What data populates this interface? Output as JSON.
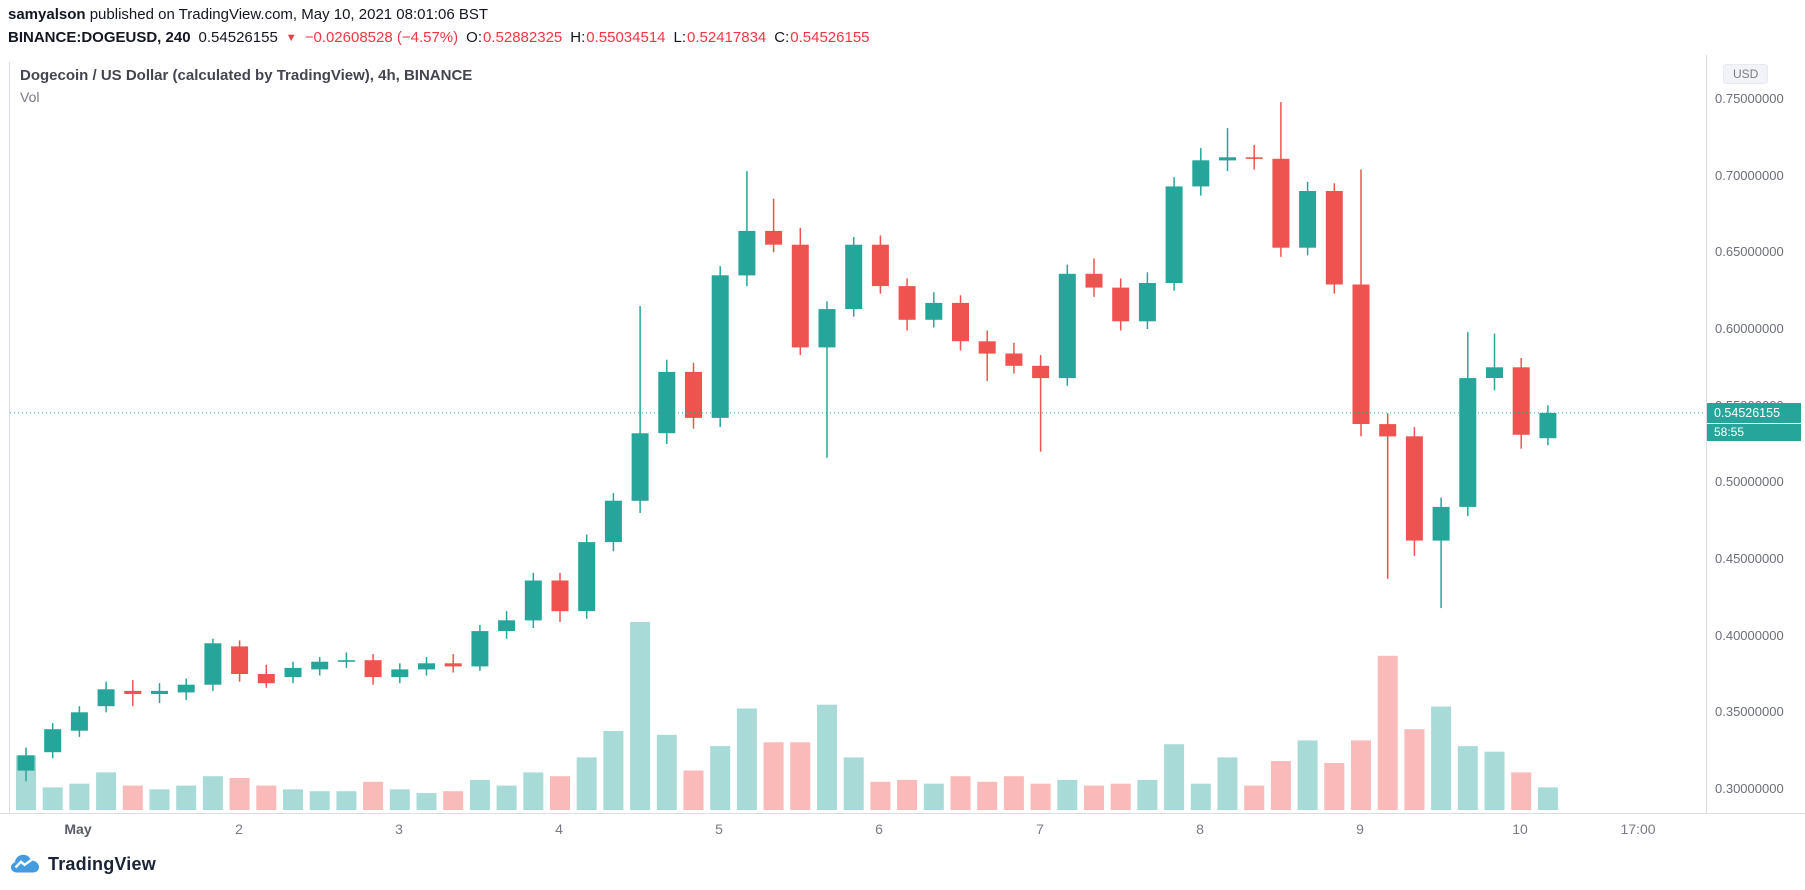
{
  "header": {
    "publisher": "samyalson",
    "published_text": " published on TradingView.com, May 10, 2021 08:01:06 BST"
  },
  "symbol_bar": {
    "symbol": "BINANCE:DOGEUSD, 240",
    "last_price": "0.54526155",
    "direction_icon": "▼",
    "change": "−0.02608528 (−4.57%)",
    "ohlc": [
      {
        "label": "O:",
        "value": "0.52882325"
      },
      {
        "label": "H:",
        "value": "0.55034514"
      },
      {
        "label": "L:",
        "value": "0.52417834"
      },
      {
        "label": "C:",
        "value": "0.54526155"
      }
    ]
  },
  "chart": {
    "title": "Dogecoin / US Dollar (calculated by TradingView), 4h, BINANCE",
    "vol_label": "Vol",
    "currency_badge": "USD",
    "price_label": "0.54526155",
    "countdown": "58:55"
  },
  "footer": {
    "brand": "TradingView"
  },
  "colors": {
    "up": "#26a69a",
    "down": "#ef5350",
    "up_vol": "rgba(38,166,154,0.40)",
    "down_vol": "rgba(239,83,80,0.40)",
    "red_text": "#f23645",
    "axis_text": "#6b6f7b",
    "frame": "#dadde3",
    "dark_text": "#131722",
    "brand_blue": "#459be0"
  },
  "chart_data": {
    "type": "candlestick",
    "title": "Dogecoin / US Dollar (calculated by TradingView), 4h, BINANCE",
    "interval": "4h (240)",
    "legend": [
      "price candles",
      "Vol overlay"
    ],
    "grid": "off",
    "y_axis_side": "right",
    "y_range_visible": [
      0.284,
      0.774
    ],
    "current_price": 0.54526155,
    "countdown": "58:55",
    "y_ticks": [
      {
        "value": 0.75,
        "label": "0.75000000"
      },
      {
        "value": 0.7,
        "label": "0.70000000"
      },
      {
        "value": 0.65,
        "label": "0.65000000"
      },
      {
        "value": 0.6,
        "label": "0.60000000"
      },
      {
        "value": 0.55,
        "label": "0.55000000"
      },
      {
        "value": 0.5,
        "label": "0.50000000"
      },
      {
        "value": 0.45,
        "label": "0.45000000"
      },
      {
        "value": 0.4,
        "label": "0.40000000"
      },
      {
        "value": 0.35,
        "label": "0.35000000"
      },
      {
        "value": 0.3,
        "label": "0.30000000"
      }
    ],
    "x_axis_labels": [
      {
        "label": "May",
        "i": 2,
        "bold": true
      },
      {
        "label": "2",
        "i": 8
      },
      {
        "label": "3",
        "i": 14
      },
      {
        "label": "4",
        "i": 20
      },
      {
        "label": "5",
        "i": 26
      },
      {
        "label": "6",
        "i": 32
      },
      {
        "label": "7",
        "i": 38
      },
      {
        "label": "8",
        "i": 44
      },
      {
        "label": "9",
        "i": 50
      },
      {
        "label": "10",
        "i": 56
      },
      {
        "label": "17:00",
        "i": 60.4
      }
    ],
    "candles_note": "4h bars, ~Apr 30 16:00 to May 10 04:00; values estimated from axis; order [open, high, low, close, volume_relative_0_100]; volume scale unlabeled in chart",
    "candles_ohlcv": [
      [
        0.312,
        0.327,
        0.305,
        0.322,
        29
      ],
      [
        0.324,
        0.343,
        0.32,
        0.339,
        12
      ],
      [
        0.338,
        0.354,
        0.334,
        0.35,
        14
      ],
      [
        0.354,
        0.37,
        0.35,
        0.365,
        20
      ],
      [
        0.364,
        0.371,
        0.354,
        0.362,
        13
      ],
      [
        0.362,
        0.369,
        0.356,
        0.364,
        11
      ],
      [
        0.363,
        0.372,
        0.358,
        0.368,
        13
      ],
      [
        0.368,
        0.398,
        0.364,
        0.395,
        18
      ],
      [
        0.393,
        0.397,
        0.37,
        0.375,
        17
      ],
      [
        0.375,
        0.381,
        0.366,
        0.369,
        13
      ],
      [
        0.373,
        0.383,
        0.369,
        0.379,
        11
      ],
      [
        0.378,
        0.386,
        0.374,
        0.383,
        10
      ],
      [
        0.383,
        0.389,
        0.379,
        0.384,
        10
      ],
      [
        0.384,
        0.388,
        0.368,
        0.373,
        15
      ],
      [
        0.373,
        0.382,
        0.369,
        0.378,
        11
      ],
      [
        0.378,
        0.386,
        0.374,
        0.382,
        9
      ],
      [
        0.382,
        0.388,
        0.376,
        0.38,
        10
      ],
      [
        0.38,
        0.407,
        0.377,
        0.403,
        16
      ],
      [
        0.403,
        0.416,
        0.398,
        0.41,
        13
      ],
      [
        0.41,
        0.441,
        0.405,
        0.436,
        20
      ],
      [
        0.436,
        0.441,
        0.409,
        0.416,
        18
      ],
      [
        0.416,
        0.466,
        0.411,
        0.461,
        28
      ],
      [
        0.461,
        0.493,
        0.455,
        0.488,
        42
      ],
      [
        0.488,
        0.615,
        0.48,
        0.532,
        100
      ],
      [
        0.532,
        0.58,
        0.525,
        0.572,
        40
      ],
      [
        0.572,
        0.578,
        0.535,
        0.542,
        21
      ],
      [
        0.542,
        0.641,
        0.536,
        0.635,
        34
      ],
      [
        0.635,
        0.703,
        0.628,
        0.664,
        54
      ],
      [
        0.664,
        0.685,
        0.65,
        0.655,
        36
      ],
      [
        0.655,
        0.666,
        0.583,
        0.588,
        36
      ],
      [
        0.588,
        0.618,
        0.516,
        0.613,
        56
      ],
      [
        0.613,
        0.66,
        0.608,
        0.655,
        28
      ],
      [
        0.655,
        0.661,
        0.623,
        0.628,
        15
      ],
      [
        0.628,
        0.633,
        0.599,
        0.606,
        16
      ],
      [
        0.606,
        0.624,
        0.601,
        0.617,
        14
      ],
      [
        0.617,
        0.622,
        0.586,
        0.592,
        18
      ],
      [
        0.592,
        0.599,
        0.566,
        0.584,
        15
      ],
      [
        0.584,
        0.591,
        0.571,
        0.576,
        18
      ],
      [
        0.576,
        0.583,
        0.52,
        0.568,
        14
      ],
      [
        0.568,
        0.642,
        0.563,
        0.636,
        16
      ],
      [
        0.636,
        0.646,
        0.621,
        0.627,
        13
      ],
      [
        0.627,
        0.633,
        0.599,
        0.605,
        14
      ],
      [
        0.605,
        0.637,
        0.6,
        0.63,
        16
      ],
      [
        0.63,
        0.699,
        0.625,
        0.693,
        35
      ],
      [
        0.693,
        0.718,
        0.687,
        0.71,
        14
      ],
      [
        0.71,
        0.731,
        0.703,
        0.712,
        28
      ],
      [
        0.712,
        0.72,
        0.704,
        0.711,
        13
      ],
      [
        0.711,
        0.748,
        0.647,
        0.653,
        26
      ],
      [
        0.653,
        0.696,
        0.648,
        0.69,
        37
      ],
      [
        0.69,
        0.695,
        0.623,
        0.629,
        25
      ],
      [
        0.629,
        0.704,
        0.53,
        0.538,
        37
      ],
      [
        0.538,
        0.545,
        0.437,
        0.53,
        82
      ],
      [
        0.53,
        0.536,
        0.452,
        0.462,
        43
      ],
      [
        0.462,
        0.49,
        0.418,
        0.484,
        55
      ],
      [
        0.484,
        0.598,
        0.478,
        0.568,
        34
      ],
      [
        0.568,
        0.597,
        0.56,
        0.575,
        31
      ],
      [
        0.575,
        0.581,
        0.522,
        0.531,
        20
      ],
      [
        0.5288,
        0.5503,
        0.5242,
        0.5453,
        12
      ]
    ]
  }
}
